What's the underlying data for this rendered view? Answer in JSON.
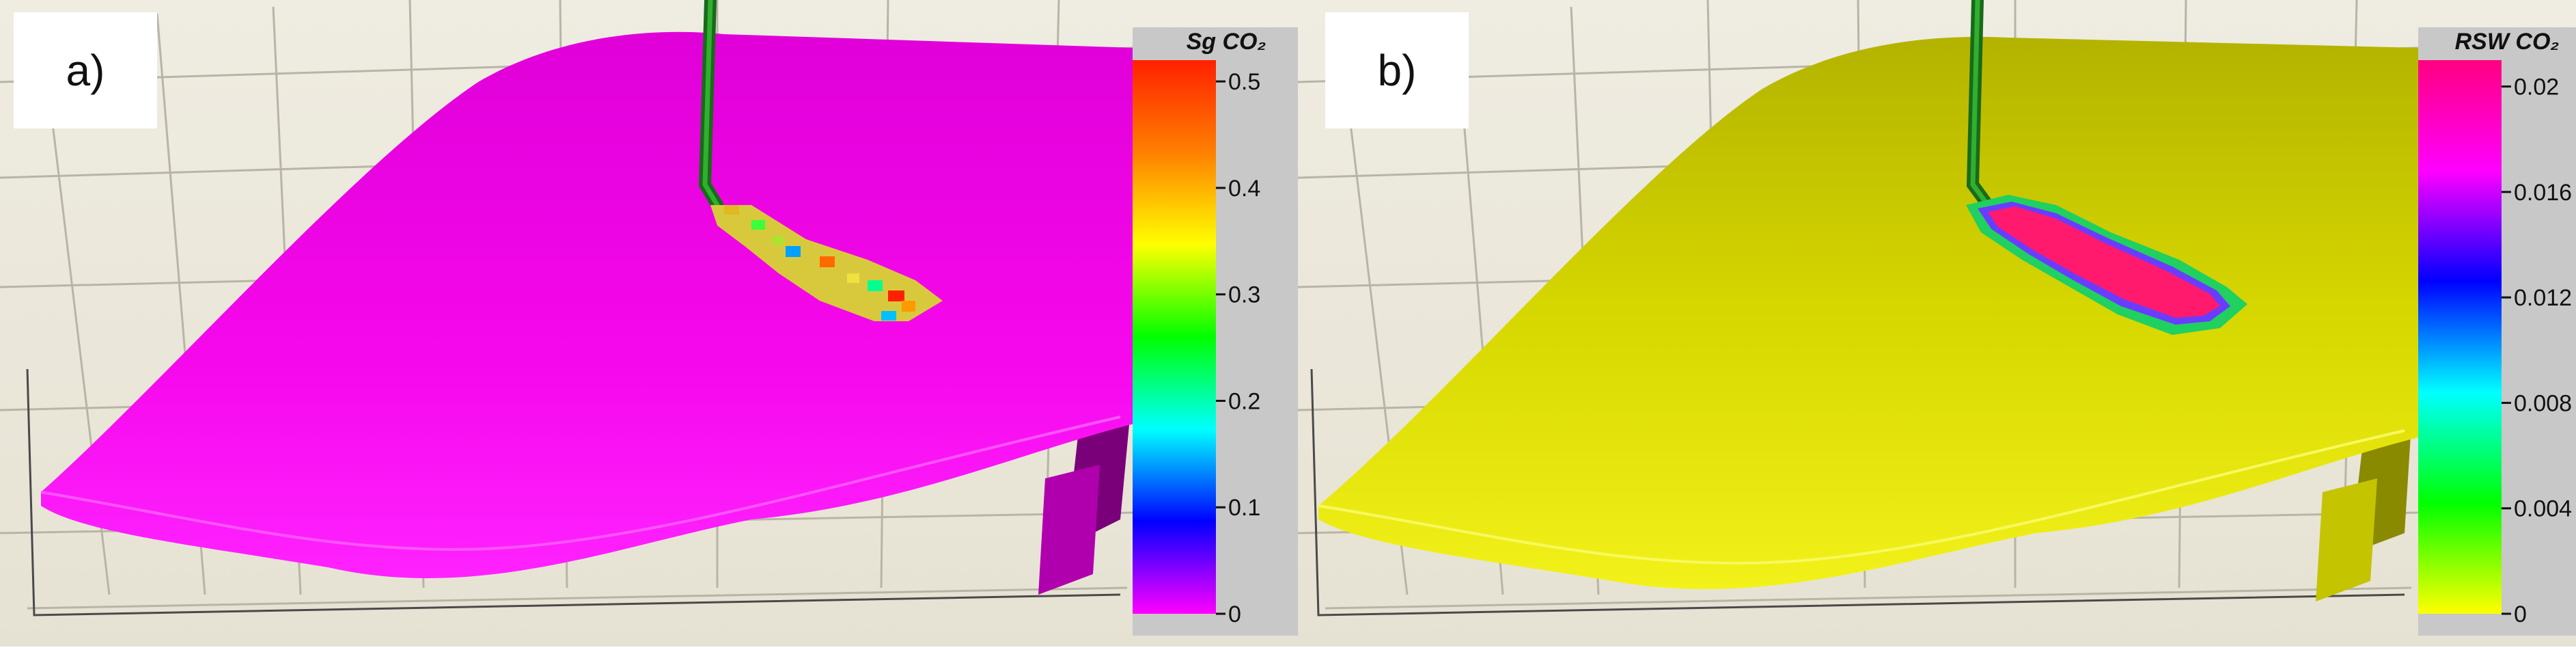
{
  "panels": [
    {
      "label": "a)",
      "colorbar": {
        "title": "Sg CO₂",
        "ticks": [
          "0.5",
          "0.4",
          "0.3",
          "0.2",
          "0.1",
          "0"
        ],
        "tick_values": [
          0.5,
          0.4,
          0.3,
          0.2,
          0.1,
          0
        ],
        "min": 0,
        "max": 0.52,
        "stops": [
          "#ff00ff",
          "#0000ff",
          "#00ffff",
          "#00ff00",
          "#ffff00",
          "#ff8000",
          "#ff2000"
        ]
      },
      "surface_color": "#ff00ff",
      "plume_color": "#d4c62a"
    },
    {
      "label": "b)",
      "colorbar": {
        "title": "RSW CO₂",
        "ticks": [
          "0.02",
          "0.016",
          "0.012",
          "0.008",
          "0.004",
          "0"
        ],
        "tick_values": [
          0.02,
          0.016,
          0.012,
          0.008,
          0.004,
          0
        ],
        "min": 0,
        "max": 0.021,
        "stops": [
          "#ffff00",
          "#00ff00",
          "#00ffff",
          "#0000ff",
          "#ff00ff",
          "#ff0080"
        ]
      },
      "surface_color": "#e6e600",
      "plume_color": "#ff1a6e"
    }
  ]
}
